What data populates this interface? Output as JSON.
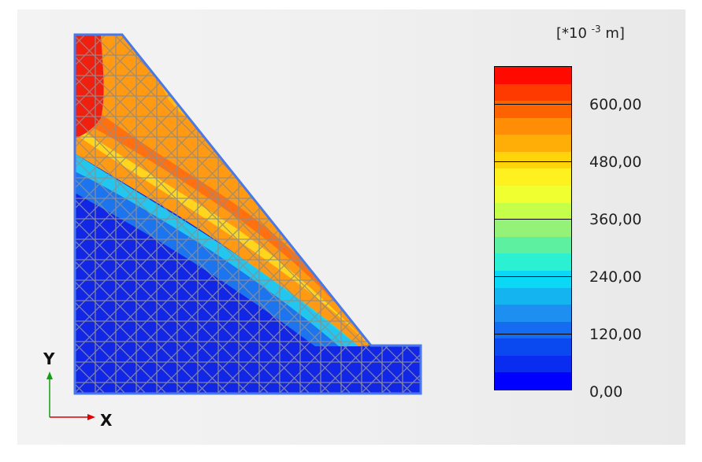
{
  "legend": {
    "unit_prefix": "[*10",
    "unit_exp": "-3",
    "unit_suffix": "m]",
    "tick_labels": [
      "600,00",
      "480,00",
      "360,00",
      "240,00",
      "120,00",
      "0,00"
    ],
    "band_colors": [
      "#ff0a00",
      "#ff3a00",
      "#ff6200",
      "#ff8d05",
      "#ffae08",
      "#ffd40a",
      "#fff020",
      "#f0ff30",
      "#c6ff4a",
      "#93f277",
      "#5cf0a0",
      "#2cf0d2",
      "#0ad8f5",
      "#14b4f0",
      "#1d8ff0",
      "#156cf0",
      "#0a48f0",
      "#0a2cf0",
      "#0000ff"
    ]
  },
  "axes": {
    "x_label": "X",
    "y_label": "Y",
    "x_color": "#e00000",
    "y_color": "#10a010"
  },
  "colors": {
    "low": "#1226e6",
    "outline": "#4a78e8",
    "mesh": "#8a8a8a"
  }
}
